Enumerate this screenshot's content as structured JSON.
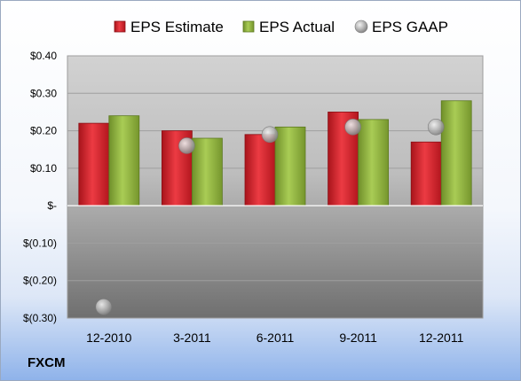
{
  "ticker": "FXCM",
  "chart_data": {
    "type": "bar",
    "categories": [
      "12-2010",
      "3-2011",
      "6-2011",
      "9-2011",
      "12-2011"
    ],
    "series": [
      {
        "name": "EPS Estimate",
        "kind": "bar",
        "color": "#d9252d",
        "values": [
          0.22,
          0.2,
          0.19,
          0.25,
          0.17
        ]
      },
      {
        "name": "EPS Actual",
        "kind": "bar",
        "color": "#8fb43e",
        "values": [
          0.24,
          0.18,
          0.21,
          0.23,
          0.28
        ]
      },
      {
        "name": "EPS GAAP",
        "kind": "scatter",
        "color": "#a9a9a9",
        "values": [
          -0.27,
          0.16,
          0.19,
          0.21,
          0.21
        ]
      }
    ],
    "ylim": [
      -0.3,
      0.4
    ],
    "yticks": [
      0.4,
      0.3,
      0.2,
      0.1,
      0.0,
      -0.1,
      -0.2,
      -0.3
    ],
    "ytick_labels": [
      "$0.40",
      "$0.30",
      "$0.20",
      "$0.10",
      "$-",
      "$(0.10)",
      "$(0.20)",
      "$(0.30)"
    ],
    "legend_position": "top",
    "grid": true
  }
}
